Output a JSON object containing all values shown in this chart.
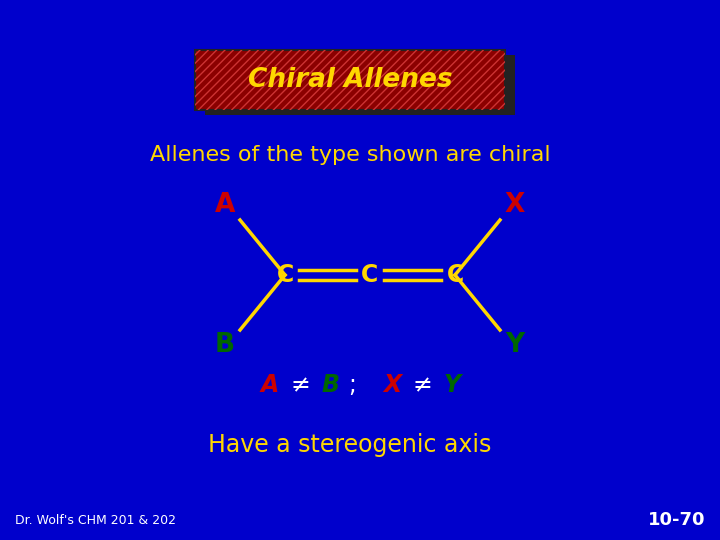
{
  "bg_color": "#0000CC",
  "title_text": "Chiral Allenes",
  "title_box_color": "#8B0000",
  "title_text_color": "#FFD700",
  "subtitle_text": "Allenes of the type shown are chiral",
  "subtitle_color": "#FFD700",
  "molecule_color": "#FFD700",
  "label_A_color": "#CC0000",
  "label_B_color": "#006600",
  "label_X_color": "#CC0000",
  "label_Y_color": "#006600",
  "C_color": "#FFD700",
  "equation_A_color": "#CC0000",
  "equation_B_color": "#006600",
  "equation_X_color": "#CC0000",
  "equation_Y_color": "#006600",
  "equation_neq_color": "#FFFFFF",
  "stereo_text": "Have a stereogenic axis",
  "stereo_color": "#FFD700",
  "footer_left": "Dr. Wolf's CHM 201 & 202",
  "footer_right": "10-70",
  "footer_color": "#FFFFFF"
}
